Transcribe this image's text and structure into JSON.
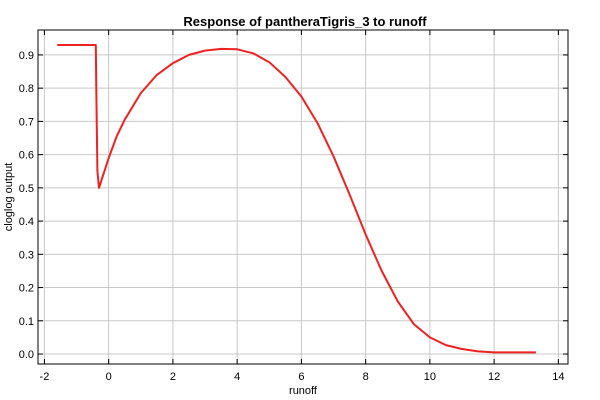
{
  "chart_data": {
    "type": "line",
    "title": "Response of pantheraTigris_3 to runoff",
    "xlabel": "runoff",
    "ylabel": "cloglog output",
    "xlim": [
      -2.2,
      14.3
    ],
    "ylim": [
      -0.03,
      0.975
    ],
    "xticks": [
      -2,
      0,
      2,
      4,
      6,
      8,
      10,
      12,
      14
    ],
    "yticks": [
      0.0,
      0.1,
      0.2,
      0.3,
      0.4,
      0.5,
      0.6,
      0.7,
      0.8,
      0.9
    ],
    "ytick_labels": [
      "0.0",
      "0.1",
      "0.2",
      "0.3",
      "0.4",
      "0.5",
      "0.6",
      "0.7",
      "0.8",
      "0.9"
    ],
    "grid": true,
    "series": [
      {
        "color": "#ee2222",
        "x": [
          -1.6,
          -0.4,
          -0.38,
          -0.35,
          -0.3,
          -0.2,
          0.0,
          0.25,
          0.5,
          1.0,
          1.5,
          2.0,
          2.5,
          3.0,
          3.5,
          4.0,
          4.5,
          5.0,
          5.5,
          6.0,
          6.5,
          7.0,
          7.5,
          8.0,
          8.5,
          9.0,
          9.5,
          10.0,
          10.5,
          11.0,
          11.5,
          12.0,
          12.5,
          13.3
        ],
        "y": [
          0.93,
          0.93,
          0.75,
          0.55,
          0.5,
          0.53,
          0.59,
          0.655,
          0.705,
          0.785,
          0.84,
          0.875,
          0.9,
          0.913,
          0.918,
          0.917,
          0.905,
          0.878,
          0.834,
          0.775,
          0.695,
          0.595,
          0.48,
          0.36,
          0.25,
          0.158,
          0.09,
          0.05,
          0.027,
          0.015,
          0.008,
          0.005,
          0.005,
          0.005
        ]
      }
    ]
  }
}
